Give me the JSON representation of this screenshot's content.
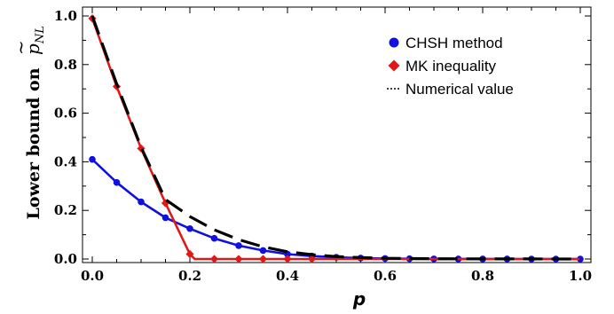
{
  "chart_data": {
    "type": "line",
    "title": "",
    "xlabel": "p",
    "ylabel": {
      "text": "Lower bound on",
      "symbol": "p",
      "accent": "~",
      "subscript": "NL"
    },
    "xlim": [
      0,
      1.0
    ],
    "ylim": [
      0,
      1.0
    ],
    "xticks": [
      "0.0",
      "0.2",
      "0.4",
      "0.6",
      "0.8",
      "1.0"
    ],
    "yticks": [
      "0.0",
      "0.2",
      "0.4",
      "0.6",
      "0.8",
      "1.0"
    ],
    "grid": false,
    "legend_position": "top-right",
    "series": [
      {
        "name": "CHSH method",
        "color": "#1010e0",
        "marker": "circle",
        "x": [
          0.0,
          0.05,
          0.1,
          0.15,
          0.2,
          0.25,
          0.3,
          0.35,
          0.4,
          0.45,
          0.5,
          0.55,
          0.6,
          0.65,
          0.7,
          0.75,
          0.8,
          0.85,
          0.9,
          0.95,
          1.0
        ],
        "y": [
          0.41,
          0.315,
          0.235,
          0.17,
          0.125,
          0.085,
          0.055,
          0.035,
          0.02,
          0.012,
          0.007,
          0.004,
          0.002,
          0.001,
          0.0005,
          0.0003,
          0.0002,
          0.0001,
          0.0,
          0.0,
          0.0
        ]
      },
      {
        "name": "MK inequality",
        "color": "#e01818",
        "marker": "diamond",
        "x": [
          0.0,
          0.05,
          0.1,
          0.15,
          0.2,
          0.25,
          0.3,
          0.35,
          0.4,
          0.45
        ],
        "y": [
          0.99,
          0.71,
          0.455,
          0.23,
          0.02,
          0.0,
          0.0,
          0.0,
          0.0,
          0.0
        ],
        "line_x": [
          0.0,
          0.05,
          0.1,
          0.15,
          0.2,
          0.21,
          1.0
        ],
        "line_y": [
          0.99,
          0.71,
          0.455,
          0.23,
          0.02,
          0.0,
          0.0
        ]
      },
      {
        "name": "Numerical value",
        "color": "#000000",
        "marker": "none",
        "dash": true,
        "x": [
          0.0,
          0.05,
          0.1,
          0.15,
          0.2,
          0.25,
          0.3,
          0.35,
          0.4,
          0.45,
          0.5,
          0.55,
          0.6,
          0.65,
          0.7,
          0.8,
          0.9,
          1.0
        ],
        "y": [
          1.0,
          0.72,
          0.46,
          0.245,
          0.175,
          0.12,
          0.08,
          0.05,
          0.03,
          0.018,
          0.01,
          0.006,
          0.003,
          0.002,
          0.001,
          0.0005,
          0.0002,
          0.0
        ]
      }
    ]
  }
}
